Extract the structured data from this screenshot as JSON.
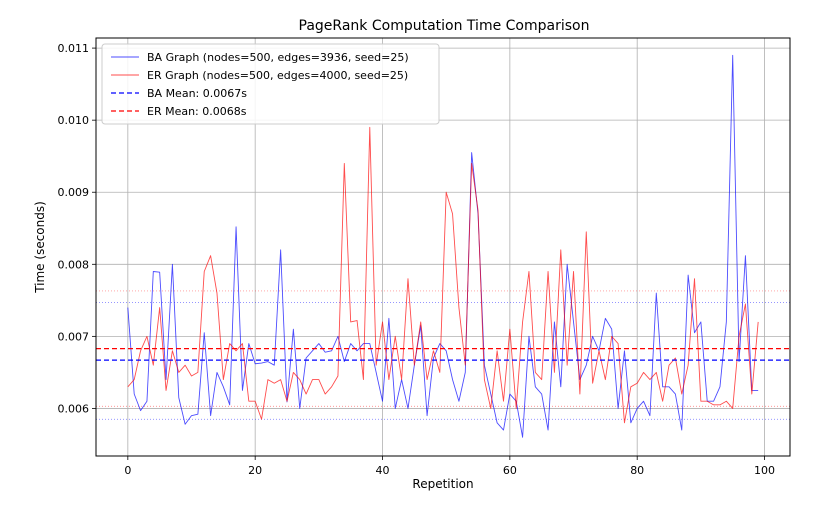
{
  "chart_data": {
    "type": "line",
    "title": "PageRank Computation Time Comparison",
    "xlabel": "Repetition",
    "ylabel": "Time (seconds)",
    "xlim": [
      -5,
      104
    ],
    "ylim": [
      0.00534,
      0.01114
    ],
    "xticks": [
      0,
      20,
      40,
      60,
      80,
      100
    ],
    "yticks": [
      0.006,
      0.007,
      0.008,
      0.009,
      0.01,
      0.011
    ],
    "ytick_labels": [
      "0.006",
      "0.007",
      "0.008",
      "0.009",
      "0.010",
      "0.011"
    ],
    "grid": true,
    "legend_position": "upper-left",
    "series": [
      {
        "name": "BA Graph (nodes=500, edges=3936, seed=25)",
        "color": "#0000ff",
        "style": "solid",
        "x": [
          0,
          1,
          2,
          3,
          4,
          5,
          6,
          7,
          8,
          9,
          10,
          11,
          12,
          13,
          14,
          15,
          16,
          17,
          18,
          19,
          20,
          21,
          22,
          23,
          24,
          25,
          26,
          27,
          28,
          29,
          30,
          31,
          32,
          33,
          34,
          35,
          36,
          37,
          38,
          39,
          40,
          41,
          42,
          43,
          44,
          45,
          46,
          47,
          48,
          49,
          50,
          51,
          52,
          53,
          54,
          55,
          56,
          57,
          58,
          59,
          60,
          61,
          62,
          63,
          64,
          65,
          66,
          67,
          68,
          69,
          70,
          71,
          72,
          73,
          74,
          75,
          76,
          77,
          78,
          79,
          80,
          81,
          82,
          83,
          84,
          85,
          86,
          87,
          88,
          89,
          90,
          91,
          92,
          93,
          94,
          95,
          96,
          97,
          98,
          99
        ],
        "values": [
          0.0074,
          0.0062,
          0.00597,
          0.0061,
          0.0079,
          0.00789,
          0.0064,
          0.008,
          0.00615,
          0.00578,
          0.0059,
          0.00592,
          0.00705,
          0.0059,
          0.0065,
          0.0063,
          0.00605,
          0.00852,
          0.00625,
          0.0069,
          0.00662,
          0.00663,
          0.00665,
          0.0066,
          0.0082,
          0.00609,
          0.0071,
          0.006,
          0.0067,
          0.0068,
          0.0069,
          0.00678,
          0.0068,
          0.007,
          0.00665,
          0.0069,
          0.0068,
          0.0069,
          0.0069,
          0.0065,
          0.0061,
          0.00725,
          0.006,
          0.0064,
          0.006,
          0.0066,
          0.00715,
          0.0059,
          0.0067,
          0.0069,
          0.0068,
          0.0064,
          0.0061,
          0.0065,
          0.00955,
          0.0087,
          0.0066,
          0.0062,
          0.0058,
          0.0057,
          0.0062,
          0.0061,
          0.0056,
          0.007,
          0.0063,
          0.0062,
          0.0057,
          0.0072,
          0.0063,
          0.008,
          0.0072,
          0.0064,
          0.0066,
          0.007,
          0.0068,
          0.00725,
          0.0071,
          0.006,
          0.0068,
          0.0058,
          0.006,
          0.0061,
          0.0059,
          0.0076,
          0.0063,
          0.0063,
          0.0062,
          0.0057,
          0.00785,
          0.00705,
          0.0072,
          0.0061,
          0.0061,
          0.0063,
          0.0072,
          0.0109,
          0.00665,
          0.00812,
          0.00625,
          0.00625
        ]
      },
      {
        "name": "ER Graph (nodes=500, edges=4000, seed=25)",
        "color": "#ff0000",
        "style": "solid",
        "x": [
          0,
          1,
          2,
          3,
          4,
          5,
          6,
          7,
          8,
          9,
          10,
          11,
          12,
          13,
          14,
          15,
          16,
          17,
          18,
          19,
          20,
          21,
          22,
          23,
          24,
          25,
          26,
          27,
          28,
          29,
          30,
          31,
          32,
          33,
          34,
          35,
          36,
          37,
          38,
          39,
          40,
          41,
          42,
          43,
          44,
          45,
          46,
          47,
          48,
          49,
          50,
          51,
          52,
          53,
          54,
          55,
          56,
          57,
          58,
          59,
          60,
          61,
          62,
          63,
          64,
          65,
          66,
          67,
          68,
          69,
          70,
          71,
          72,
          73,
          74,
          75,
          76,
          77,
          78,
          79,
          80,
          81,
          82,
          83,
          84,
          85,
          86,
          87,
          88,
          89,
          90,
          91,
          92,
          93,
          94,
          95,
          96,
          97,
          98,
          99
        ],
        "values": [
          0.0063,
          0.0064,
          0.0068,
          0.007,
          0.0066,
          0.0074,
          0.00625,
          0.0068,
          0.0065,
          0.0066,
          0.00645,
          0.0065,
          0.0079,
          0.00812,
          0.0076,
          0.0064,
          0.0069,
          0.0068,
          0.0069,
          0.0061,
          0.0061,
          0.00585,
          0.0064,
          0.00635,
          0.0064,
          0.0061,
          0.0065,
          0.0064,
          0.0062,
          0.0064,
          0.0064,
          0.0062,
          0.0063,
          0.00645,
          0.0094,
          0.0072,
          0.00722,
          0.0064,
          0.0099,
          0.0066,
          0.0072,
          0.0064,
          0.007,
          0.0064,
          0.0078,
          0.0066,
          0.0072,
          0.0064,
          0.0068,
          0.0065,
          0.009,
          0.0087,
          0.0074,
          0.0066,
          0.0094,
          0.00875,
          0.0064,
          0.006,
          0.0068,
          0.0061,
          0.0071,
          0.006,
          0.0072,
          0.0079,
          0.0065,
          0.0064,
          0.0079,
          0.0065,
          0.0082,
          0.0066,
          0.0079,
          0.0062,
          0.00845,
          0.00635,
          0.0068,
          0.0064,
          0.007,
          0.0069,
          0.0058,
          0.0063,
          0.00635,
          0.0065,
          0.0064,
          0.0065,
          0.0061,
          0.0066,
          0.0067,
          0.0062,
          0.0066,
          0.0078,
          0.0061,
          0.0061,
          0.00605,
          0.00605,
          0.0061,
          0.006,
          0.007,
          0.00745,
          0.0062,
          0.0072
        ]
      },
      {
        "name": "BA Mean: 0.0067s",
        "color": "#0000ff",
        "style": "dashed",
        "hline": 0.00667
      },
      {
        "name": "ER Mean: 0.0068s",
        "color": "#ff0000",
        "style": "dashed",
        "hline": 0.00683
      }
    ],
    "reference_lines": [
      {
        "series": "BA Graph (nodes=500, edges=3936, seed=25)",
        "color": "#0000ff",
        "values": [
          0.00585,
          0.00747
        ]
      },
      {
        "series": "ER Graph (nodes=500, edges=4000, seed=25)",
        "color": "#ff0000",
        "values": [
          0.00603,
          0.00763
        ]
      }
    ]
  }
}
